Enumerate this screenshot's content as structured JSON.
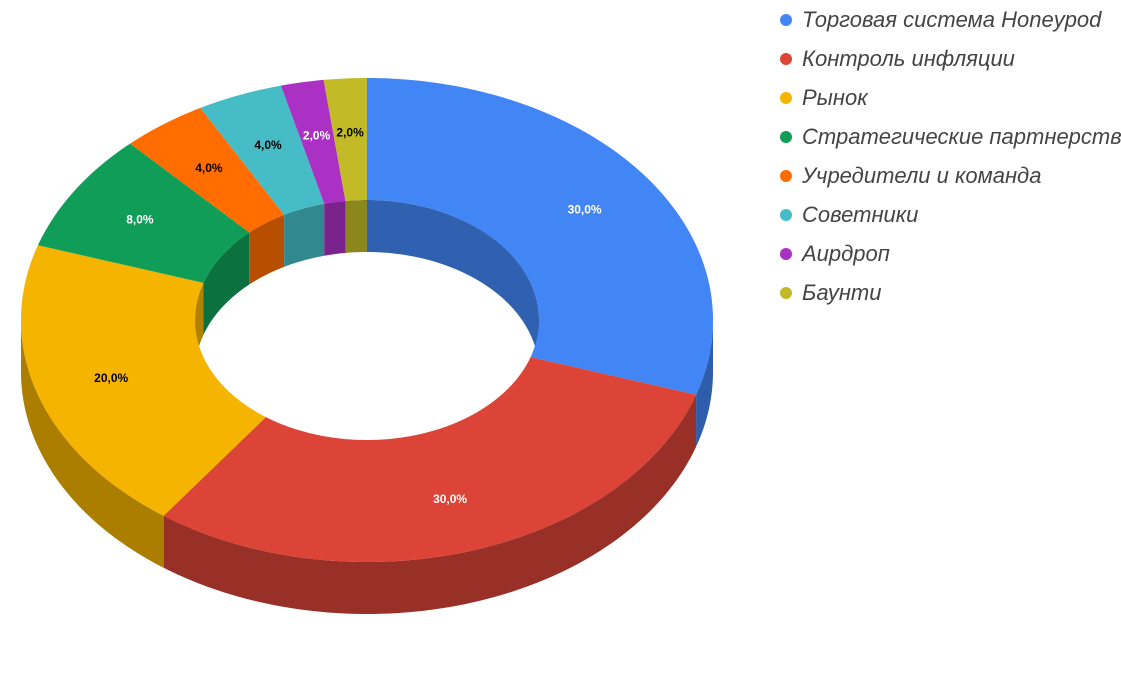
{
  "chart_data": {
    "type": "pie",
    "title": "",
    "style": "3d-donut",
    "legend_position": "right",
    "categories": [
      "Торговая система Honeypod",
      "Контроль инфляции",
      "Рынок",
      "Стратегические партнерства",
      "Учредители и команда",
      "Советники",
      "Аирдроп",
      "Баунти"
    ],
    "values": [
      30,
      30,
      20,
      8,
      4,
      4,
      2,
      2
    ],
    "labels": [
      "30,0%",
      "30,0%",
      "20,0%",
      "8,0%",
      "4,0%",
      "4,0%",
      "2,0%",
      "2,0%"
    ],
    "colors": [
      "#4285f4",
      "#db4437",
      "#f4b400",
      "#0f9d58",
      "#ff6d00",
      "#46bdc6",
      "#ab30c4",
      "#c2bb27"
    ],
    "label_colors": [
      "#ffffff",
      "#ffffff",
      "#000000",
      "#ffffff",
      "#000000",
      "#000000",
      "#ffffff",
      "#000000"
    ]
  }
}
